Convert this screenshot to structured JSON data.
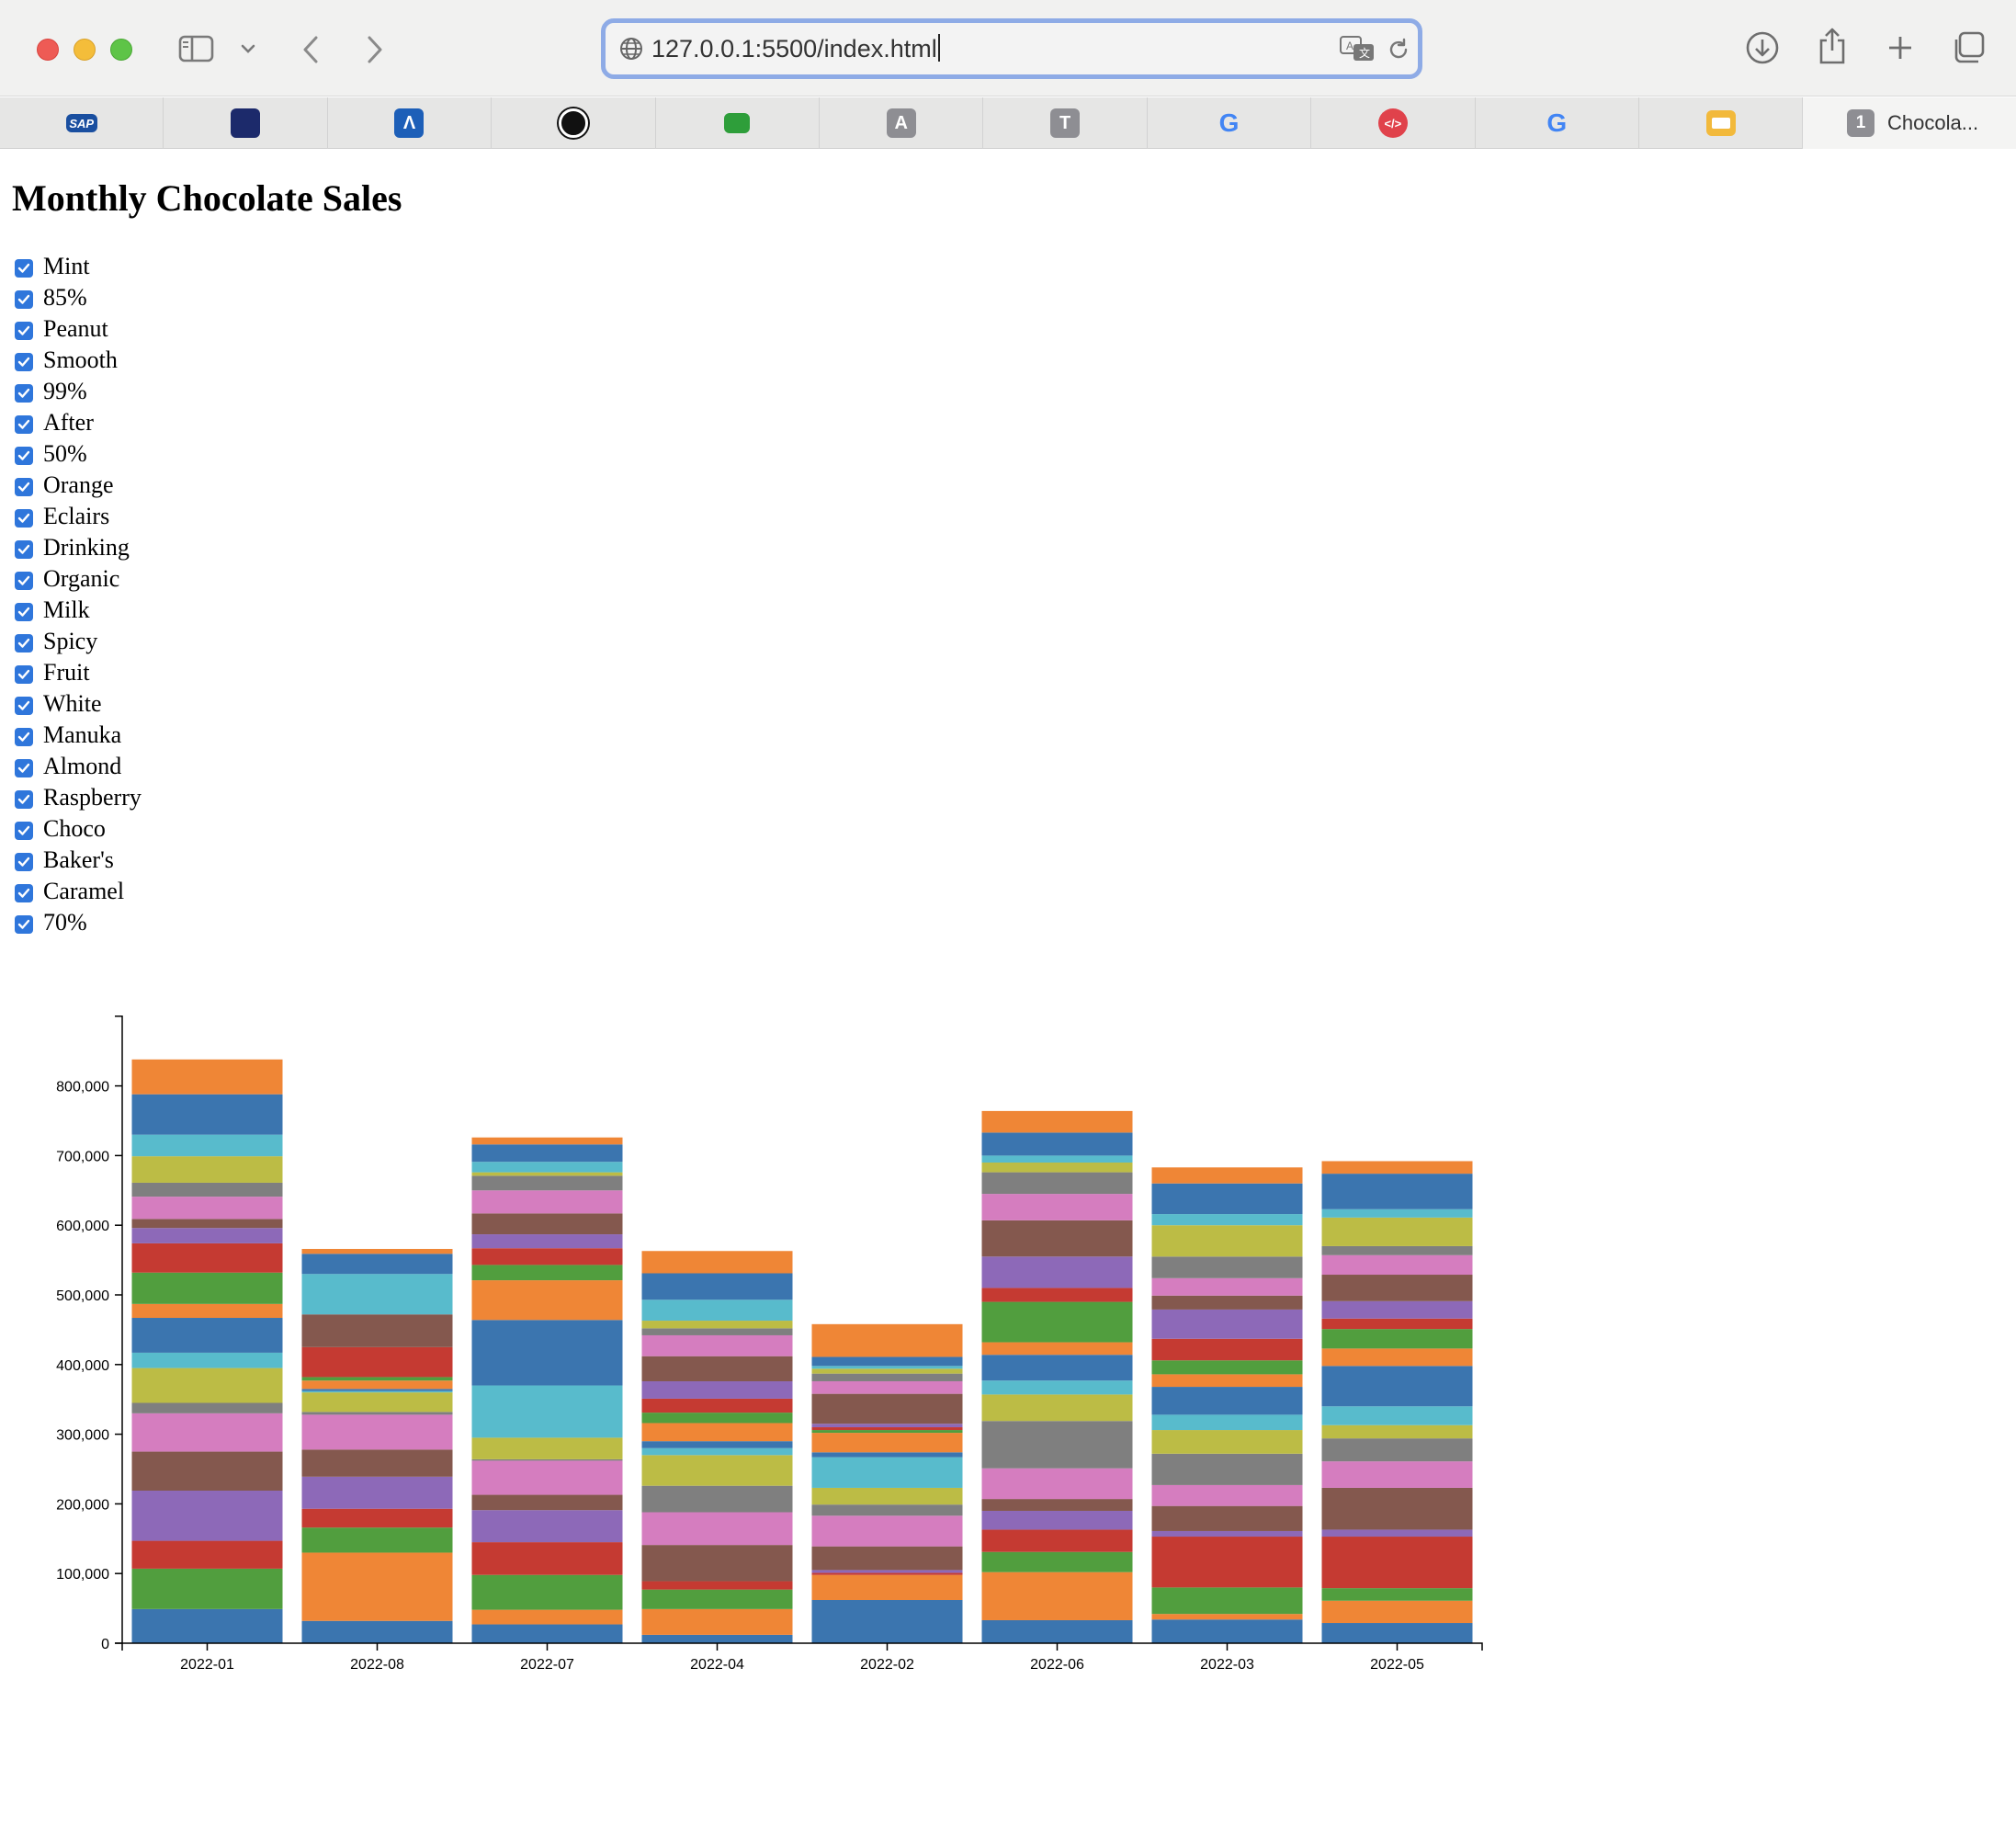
{
  "browser": {
    "url": "127.0.0.1:5500/index.html",
    "active_tab_count": "1",
    "active_tab_title": "Chocola...",
    "favorites": [
      {
        "icon": "sap-icon",
        "text": "SAP",
        "color": "#1a4fa0"
      },
      {
        "icon": "unist-icon",
        "text": "",
        "color": "#1c2a6b"
      },
      {
        "icon": "lambda-icon",
        "text": "Λ",
        "color": "#1d5fb8"
      },
      {
        "icon": "openai-icon",
        "text": "",
        "color": "#111111"
      },
      {
        "icon": "green-book-icon",
        "text": "",
        "color": "#2e9e3a"
      },
      {
        "icon": "letter-a-icon",
        "text": "A",
        "color": "#8e8e93"
      },
      {
        "icon": "letter-t-icon",
        "text": "T",
        "color": "#8e8e93"
      },
      {
        "icon": "google-icon",
        "text": "G",
        "color": "#4285f4"
      },
      {
        "icon": "red-code-icon",
        "text": "</>",
        "color": "#e0424b"
      },
      {
        "icon": "google-icon",
        "text": "G",
        "color": "#4285f4"
      },
      {
        "icon": "yellow-slides-icon",
        "text": "",
        "color": "#f2b93b"
      }
    ]
  },
  "page": {
    "title": "Monthly Chocolate Sales"
  },
  "legend": {
    "items": [
      "Mint",
      "85%",
      "Peanut",
      "Smooth",
      "99%",
      "After",
      "50%",
      "Orange",
      "Eclairs",
      "Drinking",
      "Organic",
      "Milk",
      "Spicy",
      "Fruit",
      "White",
      "Manuka",
      "Almond",
      "Raspberry",
      "Choco",
      "Baker's",
      "Caramel",
      "70%"
    ],
    "checked": true
  },
  "chart_data": {
    "type": "bar",
    "stacked": true,
    "title": "",
    "xlabel": "",
    "ylabel": "",
    "ylim": [
      0,
      900000
    ],
    "y_ticks": [
      "0",
      "100,000",
      "200,000",
      "300,000",
      "400,000",
      "500,000",
      "600,000",
      "700,000",
      "800,000"
    ],
    "categories": [
      "2022-01",
      "2022-08",
      "2022-07",
      "2022-04",
      "2022-02",
      "2022-06",
      "2022-03",
      "2022-05"
    ],
    "colors": [
      "#3b75af",
      "#ef8636",
      "#519e3e",
      "#c53a32",
      "#8d69b8",
      "#84584e",
      "#d57dbf",
      "#7f7f7f",
      "#bcbc45",
      "#58bbcc"
    ],
    "segments": [
      [
        49000,
        0,
        58000,
        40000,
        72000,
        56000,
        55000,
        15000,
        50000,
        22000,
        50000,
        20000,
        45000,
        42000,
        22000,
        13000,
        32000,
        20000,
        38000,
        31000,
        58000,
        50000
      ],
      [
        32000,
        98000,
        36000,
        27000,
        46000,
        39000,
        50000,
        4000,
        28000,
        2000,
        3000,
        12000,
        5000,
        43000,
        0,
        47000,
        0,
        0,
        0,
        58000,
        29000,
        7000
      ],
      [
        27000,
        21000,
        50000,
        47000,
        46000,
        22000,
        49000,
        2000,
        31000,
        75000,
        94000,
        57000,
        22000,
        24000,
        20000,
        30000,
        33000,
        21000,
        5000,
        15000,
        25000,
        10000
      ],
      [
        12000,
        37000,
        28000,
        12000,
        0,
        52000,
        47000,
        38000,
        44000,
        10000,
        10000,
        26000,
        15000,
        20000,
        25000,
        36000,
        30000,
        10000,
        11000,
        30000,
        38000,
        32000
      ],
      [
        62000,
        36000,
        0,
        3000,
        4000,
        34000,
        44000,
        16000,
        24000,
        44000,
        7000,
        28000,
        4000,
        4000,
        5000,
        43000,
        18000,
        11000,
        7000,
        4000,
        13000,
        47000
      ],
      [
        33000,
        69000,
        29000,
        32000,
        27000,
        17000,
        44000,
        68000,
        38000,
        20000,
        37000,
        18000,
        58000,
        20000,
        45000,
        52000,
        38000,
        31000,
        14000,
        10000,
        33000,
        31000
      ],
      [
        34000,
        8000,
        38000,
        73000,
        8000,
        36000,
        30000,
        45000,
        34000,
        22000,
        40000,
        18000,
        20000,
        31000,
        42000,
        20000,
        25000,
        31000,
        45000,
        16000,
        44000,
        23000
      ],
      [
        29000,
        32000,
        18000,
        74000,
        10000,
        60000,
        38000,
        33000,
        19000,
        27000,
        58000,
        25000,
        28000,
        15000,
        25000,
        38000,
        28000,
        13000,
        41000,
        12000,
        51000,
        18000
      ]
    ]
  }
}
